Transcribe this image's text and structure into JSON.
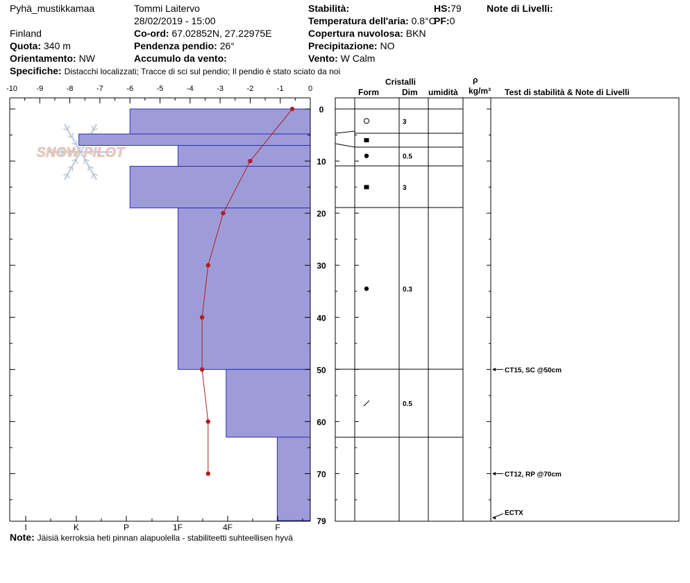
{
  "header": {
    "location": "Pyhä_mustikkamaa",
    "country": "Finland",
    "observer": "Tommi Laitervo",
    "datetime": "28/02/2019 - 15:00",
    "elevation_label": "Quota:",
    "elevation_value": "340 m",
    "aspect_label": "Orientamento:",
    "aspect_value": "NW",
    "coord_label": "Co-ord:",
    "coord_value": "67.02852N, 27.22975E",
    "slope_label": "Pendenza pendio:",
    "slope_value": "26°",
    "windload_label": "Accumulo da vento:",
    "windload_value": "",
    "stability_label": "Stabilità:",
    "stability_value": "",
    "airtemp_label": "Temperatura dell'aria:",
    "airtemp_value": "0.8°C",
    "sky_label": "Copertura nuvolosa:",
    "sky_value": "BKN",
    "precip_label": "Precipitazione:",
    "precip_value": "NO",
    "wind_label": "Vento:",
    "wind_value": "W Calm",
    "hs_label": "HS:",
    "hs_value": "79",
    "pf_label": "PF:",
    "pf_value": "0",
    "layer_notes_label": "Note di Livelli:",
    "specifics_label": "Specifiche:",
    "specifics_value": "Distacchi localizzati;  Tracce di sci sul pendio;  Il pendio è stato sciato da noi",
    "note_label": "Note:",
    "note_value": "Jäisiä kerroksia heti pinnan alapuolella - stabiliteetti suhteellisen hyvä"
  },
  "columns": {
    "cristalli": "Cristalli",
    "form": "Form",
    "dim": "Dim",
    "umidita": "umidità",
    "rho": "ρ",
    "density_unit": "kg/m³",
    "tests": "Test di stabilità & Note di Livelli"
  },
  "logo_text": "SNOW PILOT",
  "colors": {
    "layer_fill": "#9d9cd8",
    "layer_edge": "#2d2db8",
    "temp_line": "#b21d1d",
    "logo": "#e0b8a8"
  },
  "chart_data": {
    "type": "bar",
    "title": "",
    "temp_axis_ticks": [
      "-10",
      "-9",
      "-8",
      "-7",
      "-6",
      "-5",
      "-4",
      "-3",
      "-2",
      "-1",
      "0"
    ],
    "temp_range": [
      -10,
      0
    ],
    "hardness_axis_ticks": [
      "I",
      "K",
      "P",
      "1F",
      "4F",
      "F"
    ],
    "depth_range": [
      0,
      79
    ],
    "depth_ticks": [
      "0",
      "10",
      "20",
      "30",
      "40",
      "50",
      "60",
      "70",
      "79"
    ],
    "layers": [
      {
        "top": 0,
        "bottom": 4.8,
        "hardness_x": -6.0
      },
      {
        "top": 4.8,
        "bottom": 7,
        "hardness_x": -7.7
      },
      {
        "top": 7,
        "bottom": 11,
        "hardness_x": -4.4
      },
      {
        "top": 11,
        "bottom": 19,
        "hardness_x": -6.0
      },
      {
        "top": 19,
        "bottom": 50,
        "hardness_x": -4.4
      },
      {
        "top": 50,
        "bottom": 63,
        "hardness_x": -2.8
      },
      {
        "top": 63,
        "bottom": 79,
        "hardness_x": -1.1
      }
    ],
    "temperature_profile": [
      {
        "depth": 0,
        "temp": -0.6
      },
      {
        "depth": 10,
        "temp": -2.0
      },
      {
        "depth": 20,
        "temp": -2.9
      },
      {
        "depth": 30,
        "temp": -3.4
      },
      {
        "depth": 40,
        "temp": -3.6
      },
      {
        "depth": 50,
        "temp": -3.6
      },
      {
        "depth": 60,
        "temp": -3.4
      },
      {
        "depth": 70,
        "temp": -3.4
      }
    ],
    "grains": [
      {
        "depth": 2.3,
        "form": "open-circle",
        "size": "3"
      },
      {
        "depth": 6,
        "form": "filled-square",
        "size": ""
      },
      {
        "depth": 9,
        "form": "filled-circle",
        "size": "0.5"
      },
      {
        "depth": 15,
        "form": "filled-square",
        "size": "3"
      },
      {
        "depth": 34.5,
        "form": "filled-circle",
        "size": "0.3"
      },
      {
        "depth": 56.5,
        "form": "slash",
        "size": "0.5"
      }
    ],
    "tests": [
      {
        "depth": 50,
        "label": "CT15, SC @50cm"
      },
      {
        "depth": 70,
        "label": "CT12, RP @70cm"
      },
      {
        "depth": 79,
        "label": "ECTX"
      }
    ]
  }
}
